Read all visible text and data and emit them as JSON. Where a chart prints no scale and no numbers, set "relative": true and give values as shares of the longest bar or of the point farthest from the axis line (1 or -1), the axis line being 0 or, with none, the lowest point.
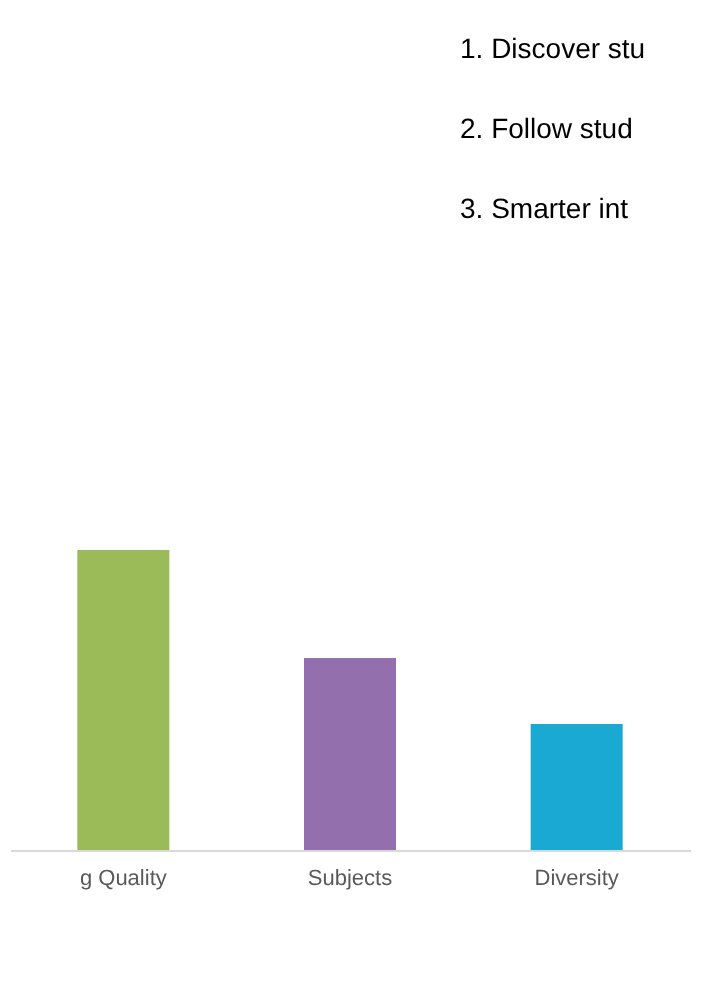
{
  "chart_data": {
    "type": "bar",
    "relative": true,
    "categories": [
      "g Quality",
      "Subjects",
      "Diversity"
    ],
    "values": [
      1,
      0.64,
      0.42
    ],
    "colors": [
      "#9bbb59",
      "#9370ad",
      "#1aa9d2"
    ],
    "annotations": [
      "1.   Discover stu",
      "2.   Follow stud",
      "3.   Smarter int"
    ],
    "grid": false
  }
}
